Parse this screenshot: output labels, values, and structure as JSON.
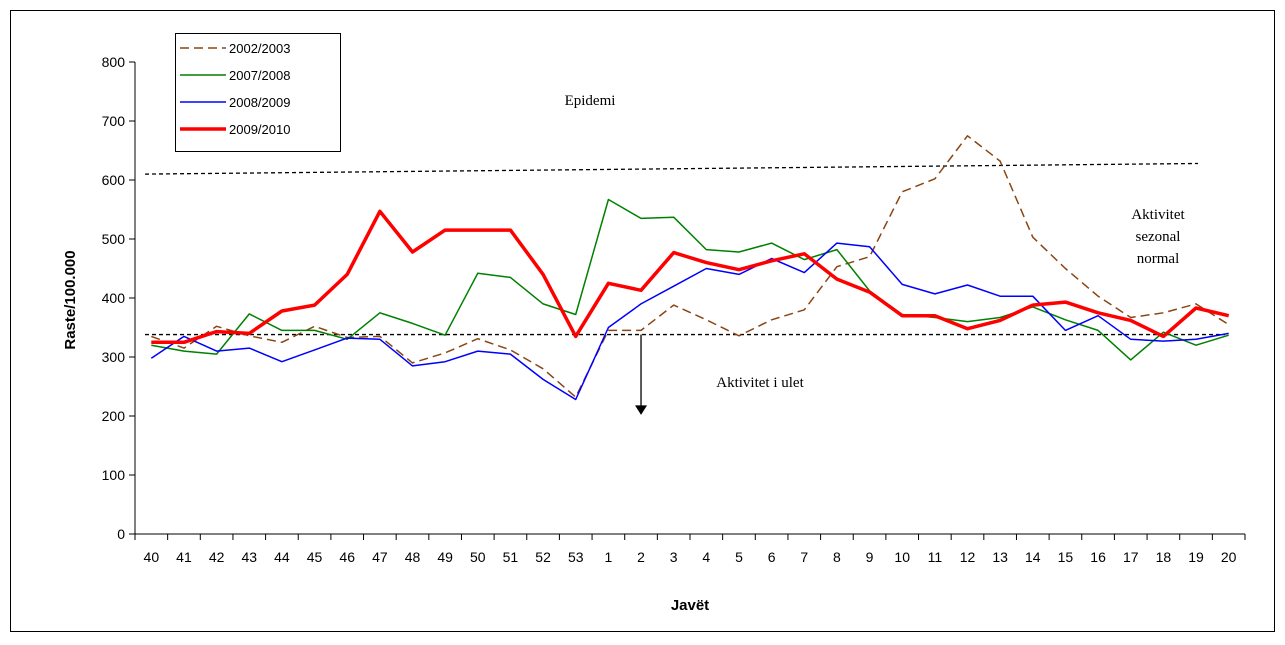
{
  "chart_data": {
    "type": "line",
    "xlabel": "Javët",
    "ylabel": "Raste/100.000",
    "ylim": [
      0,
      800
    ],
    "yticks": [
      "0",
      "100",
      "200",
      "300",
      "400",
      "500",
      "600",
      "700",
      "800"
    ],
    "categories": [
      "40",
      "41",
      "42",
      "43",
      "44",
      "45",
      "46",
      "47",
      "48",
      "49",
      "50",
      "51",
      "52",
      "53",
      "1",
      "2",
      "3",
      "4",
      "5",
      "6",
      "7",
      "8",
      "9",
      "10",
      "11",
      "12",
      "13",
      "14",
      "15",
      "16",
      "17",
      "18",
      "19",
      "20"
    ],
    "grid": false,
    "legend_position": "top-left",
    "series": [
      {
        "name": "2002/2003",
        "color": "#8B4513",
        "style": "dashed",
        "values": [
          335,
          315,
          352,
          336,
          325,
          352,
          333,
          335,
          290,
          307,
          331,
          312,
          280,
          232,
          345,
          345,
          388,
          363,
          336,
          363,
          380,
          453,
          470,
          580,
          602,
          675,
          632,
          503,
          450,
          403,
          367,
          375,
          390,
          355
        ]
      },
      {
        "name": "2007/2008",
        "color": "#008000",
        "style": "solid",
        "values": [
          320,
          310,
          305,
          373,
          345,
          345,
          330,
          375,
          357,
          337,
          442,
          435,
          390,
          372,
          567,
          535,
          537,
          482,
          478,
          493,
          465,
          482,
          412,
          372,
          367,
          360,
          367,
          385,
          363,
          345,
          295,
          342,
          320,
          337
        ]
      },
      {
        "name": "2008/2009",
        "color": "#0000FF",
        "style": "solid",
        "values": [
          298,
          335,
          310,
          315,
          292,
          312,
          332,
          330,
          285,
          292,
          310,
          305,
          262,
          228,
          350,
          390,
          420,
          450,
          440,
          467,
          443,
          493,
          487,
          423,
          407,
          422,
          403,
          403,
          345,
          370,
          330,
          327,
          330,
          340
        ]
      },
      {
        "name": "2009/2010",
        "color": "#FF0000",
        "style": "bold",
        "values": [
          325,
          325,
          343,
          340,
          378,
          388,
          440,
          547,
          478,
          515,
          515,
          515,
          440,
          335,
          425,
          413,
          477,
          460,
          448,
          463,
          475,
          432,
          410,
          370,
          370,
          348,
          362,
          388,
          393,
          375,
          362,
          335,
          383,
          370
        ]
      }
    ],
    "reference_lines": [
      {
        "label": "Epidemi",
        "from": 610,
        "to": 628
      },
      {
        "label": "Aktivitet i ulet",
        "value": 338
      }
    ],
    "annotations": {
      "epidemic": "Epidemi",
      "seasonal": [
        "Aktivitet",
        "sezonal",
        "normal"
      ],
      "low": "Aktivitet i ulet"
    }
  }
}
